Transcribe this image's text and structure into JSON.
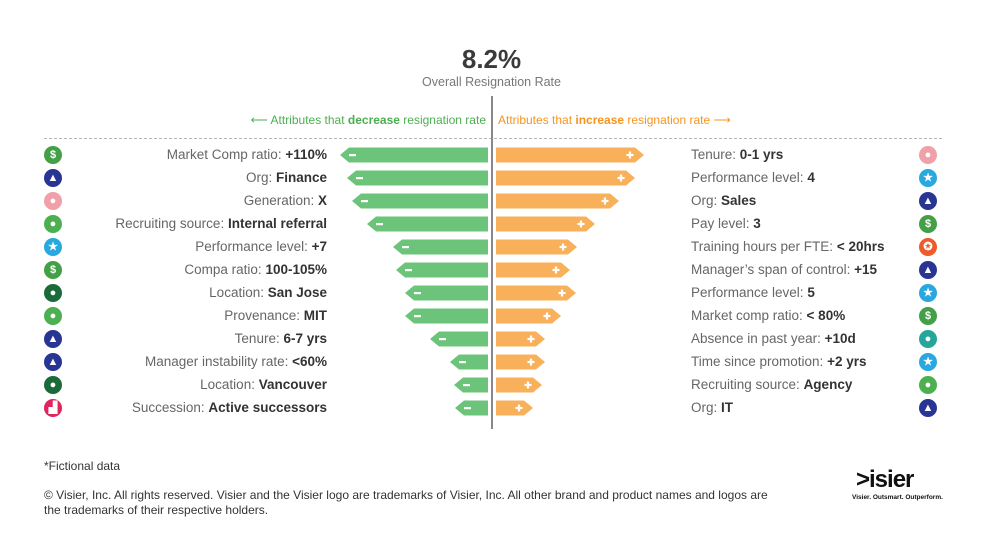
{
  "colors": {
    "decrease": "#6cc47b",
    "increase": "#f9b05a",
    "axis": "#888888"
  },
  "header": {
    "headline_value": "8.2%",
    "headline_label": "Overall Resignation Rate"
  },
  "legend": {
    "decrease_prefix": "Attributes that ",
    "decrease_bold": "decrease",
    "decrease_suffix": " resignation rate",
    "increase_prefix": "Attributes that ",
    "increase_bold": "increase",
    "increase_suffix": " resignation rate"
  },
  "chart_data": {
    "type": "bar",
    "orientation": "diverging-horizontal",
    "center_value": "8.2%",
    "center_label": "Overall Resignation Rate",
    "value_scale": "relative impact (no axis printed)",
    "decrease": [
      {
        "attribute": "Market Comp ratio: ",
        "value_label": "+110%",
        "impact": 1.0,
        "icon": "dollar-icon",
        "icon_color": "#43a047"
      },
      {
        "attribute": "Org: ",
        "value_label": "Finance",
        "impact": 0.95,
        "icon": "org-icon",
        "icon_color": "#283593"
      },
      {
        "attribute": "Generation: ",
        "value_label": "X",
        "impact": 0.92,
        "icon": "people-icon",
        "icon_color": "#f0a0a8"
      },
      {
        "attribute": "Recruiting source: ",
        "value_label": "Internal referral",
        "impact": 0.82,
        "icon": "recruit-icon",
        "icon_color": "#4caf50"
      },
      {
        "attribute": "Performance level: ",
        "value_label": "+7",
        "impact": 0.64,
        "icon": "star-icon",
        "icon_color": "#29a8e0"
      },
      {
        "attribute": "Compa ratio: ",
        "value_label": "100-105%",
        "impact": 0.62,
        "icon": "dollar-icon",
        "icon_color": "#43a047"
      },
      {
        "attribute": "Location: ",
        "value_label": "San Jose",
        "impact": 0.56,
        "icon": "location-icon",
        "icon_color": "#1b6b3a"
      },
      {
        "attribute": "Provenance: ",
        "value_label": "MIT",
        "impact": 0.56,
        "icon": "recruit-icon",
        "icon_color": "#4caf50"
      },
      {
        "attribute": "Tenure: ",
        "value_label": "6-7 yrs",
        "impact": 0.39,
        "icon": "org-icon",
        "icon_color": "#283593"
      },
      {
        "attribute": "Manager instability rate: ",
        "value_label": "<60%",
        "impact": 0.26,
        "icon": "org-icon",
        "icon_color": "#283593"
      },
      {
        "attribute": "Location: ",
        "value_label": "Vancouver",
        "impact": 0.23,
        "icon": "location-icon",
        "icon_color": "#1b6b3a"
      },
      {
        "attribute": "Succession: ",
        "value_label": "Active successors",
        "impact": 0.22,
        "icon": "succession-icon",
        "icon_color": "#e0245e"
      }
    ],
    "increase": [
      {
        "attribute": "Tenure: ",
        "value_label": "0-1 yrs",
        "impact": 1.0,
        "icon": "people-icon",
        "icon_color": "#f0a0a8"
      },
      {
        "attribute": "Performance level: ",
        "value_label": "4",
        "impact": 0.94,
        "icon": "star-icon",
        "icon_color": "#29a8e0"
      },
      {
        "attribute": "Org: ",
        "value_label": "Sales",
        "impact": 0.83,
        "icon": "org-icon",
        "icon_color": "#283593"
      },
      {
        "attribute": "Pay level: ",
        "value_label": "3",
        "impact": 0.67,
        "icon": "dollar-icon",
        "icon_color": "#43a047"
      },
      {
        "attribute": "Training hours per FTE: ",
        "value_label": "< 20hrs",
        "impact": 0.55,
        "icon": "award-icon",
        "icon_color": "#ef5a2a"
      },
      {
        "attribute": "Manager’s span of control: ",
        "value_label": "+15",
        "impact": 0.5,
        "icon": "org-icon",
        "icon_color": "#283593"
      },
      {
        "attribute": "Performance level: ",
        "value_label": "5",
        "impact": 0.54,
        "icon": "star-icon",
        "icon_color": "#29a8e0"
      },
      {
        "attribute": "Market comp ratio: ",
        "value_label": "< 80%",
        "impact": 0.44,
        "icon": "dollar-icon",
        "icon_color": "#43a047"
      },
      {
        "attribute": "Absence in past year: ",
        "value_label": "+10d",
        "impact": 0.33,
        "icon": "person-icon",
        "icon_color": "#26a69a"
      },
      {
        "attribute": "Time since promotion: ",
        "value_label": "+2 yrs",
        "impact": 0.33,
        "icon": "star-icon",
        "icon_color": "#29a8e0"
      },
      {
        "attribute": "Recruiting source: ",
        "value_label": "Agency",
        "impact": 0.31,
        "icon": "recruit-icon",
        "icon_color": "#4caf50"
      },
      {
        "attribute": "Org: ",
        "value_label": "IT",
        "impact": 0.25,
        "icon": "org-icon",
        "icon_color": "#283593"
      }
    ]
  },
  "icon_glyphs": {
    "dollar-icon": "$",
    "org-icon": "▲",
    "people-icon": "●",
    "recruit-icon": "●",
    "star-icon": "★",
    "location-icon": "●",
    "succession-icon": "▟",
    "award-icon": "✪",
    "person-icon": "●"
  },
  "footer": {
    "note": "*Fictional data",
    "copyright": "© Visier, Inc. All rights reserved. Visier and the Visier logo are trademarks of Visier, Inc. All other brand and product names and logos are the trademarks of their respective holders.",
    "logo_text": ">isier",
    "tagline": "Visier. Outsmart. Outperform."
  }
}
